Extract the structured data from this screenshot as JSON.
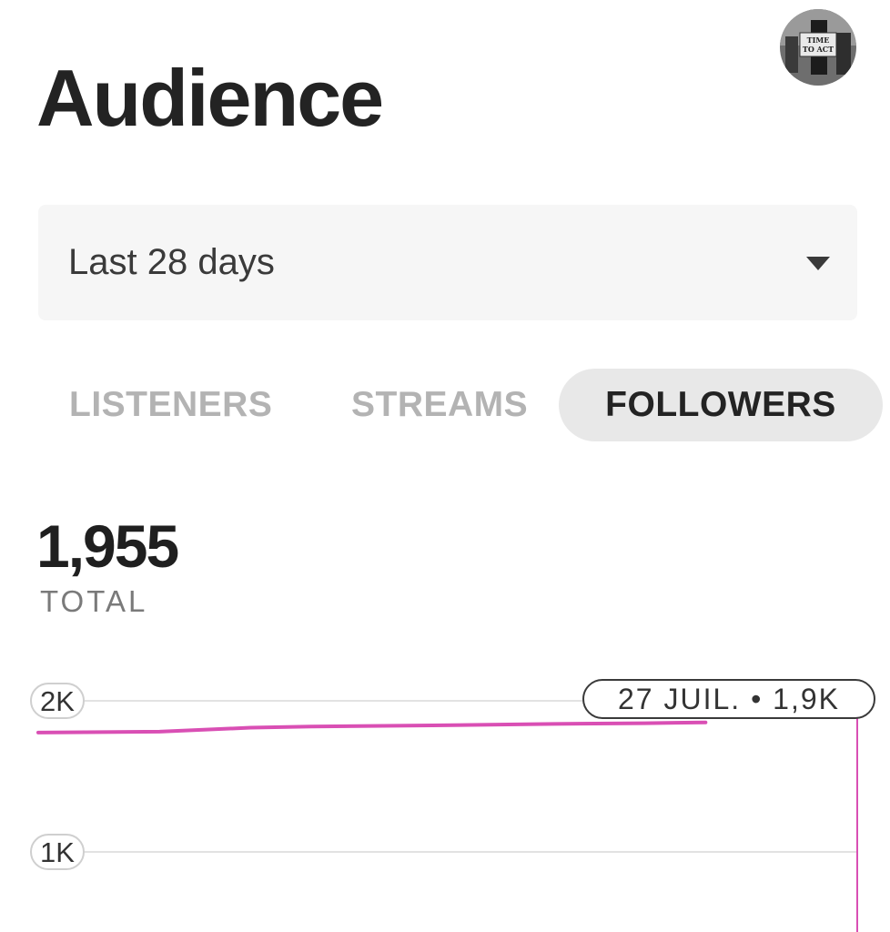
{
  "header": {
    "title": "Audience"
  },
  "avatar": {
    "sign_text_1": "TIME",
    "sign_text_2": "TO ACT"
  },
  "period_select": {
    "selected": "Last 28 days"
  },
  "tabs": [
    {
      "label": "LISTENERS",
      "active": false
    },
    {
      "label": "STREAMS",
      "active": false
    },
    {
      "label": "FOLLOWERS",
      "active": true
    }
  ],
  "summary": {
    "value": "1,955",
    "label": "TOTAL"
  },
  "chart_data": {
    "type": "line",
    "y_ticks": [
      {
        "value": 2000,
        "label": "2K"
      },
      {
        "value": 1000,
        "label": "1K"
      }
    ],
    "x_days": 28,
    "series": [
      {
        "color": "#d94fb4",
        "points": [
          [
            1,
            1790
          ],
          [
            5,
            1796
          ],
          [
            8,
            1822
          ],
          [
            10,
            1830
          ],
          [
            14,
            1837
          ],
          [
            18,
            1847
          ],
          [
            21,
            1852
          ],
          [
            22,
            1855
          ],
          [
            23,
            1857
          ]
        ]
      }
    ],
    "hover": {
      "label": "27 JUIL. • 1,9K",
      "day": 28
    },
    "grid": true
  }
}
